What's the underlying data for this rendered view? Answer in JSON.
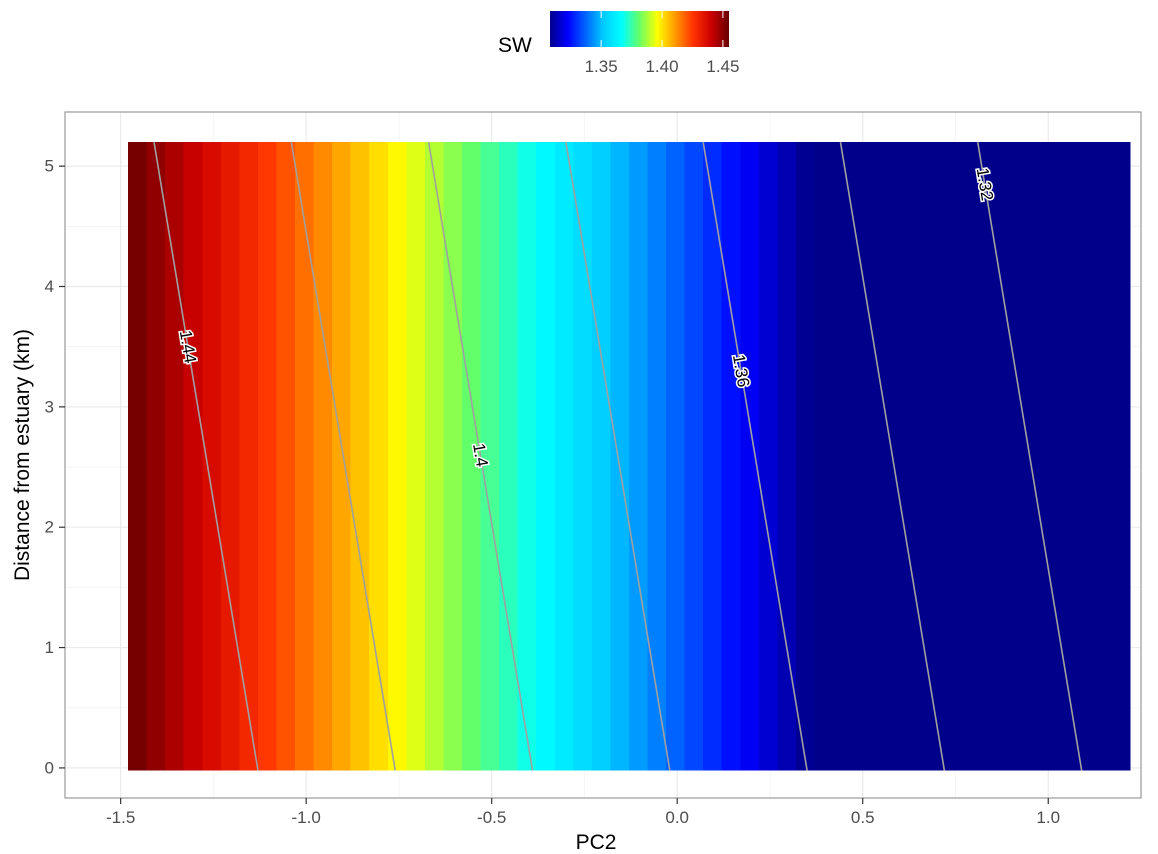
{
  "chart_data": {
    "type": "heatmap",
    "title": "",
    "xlabel": "PC2",
    "ylabel": "Distance from estuary (km)",
    "xlim": [
      -1.65,
      1.25
    ],
    "ylim": [
      -0.25,
      5.45
    ],
    "x_ticks": [
      -1.5,
      -1.0,
      -0.5,
      0.0,
      0.5,
      1.0
    ],
    "x_tick_labels": [
      "-1.5",
      "-1.0",
      "-0.5",
      "0.0",
      "0.5",
      "1.0"
    ],
    "y_ticks": [
      0,
      1,
      2,
      3,
      4,
      5
    ],
    "y_tick_labels": [
      "0",
      "1",
      "2",
      "3",
      "4",
      "5"
    ],
    "grid": true,
    "raster": {
      "x_min": -1.48,
      "x_max": 1.22,
      "y_min": -0.02,
      "y_max": 5.2,
      "column_width": 0.1,
      "values": [
        1.453,
        1.449,
        1.445,
        1.441,
        1.437,
        1.433,
        1.429,
        1.425,
        1.421,
        1.417,
        1.413,
        1.409,
        1.405,
        1.401,
        1.397,
        1.393,
        1.389,
        1.385,
        1.381,
        1.377,
        1.373,
        1.369,
        1.365,
        1.361,
        1.357,
        1.353,
        1.349,
        1.345,
        1.341,
        1.337,
        1.333,
        1.329,
        1.325,
        1.321,
        1.317,
        1.313,
        1.309,
        1.305,
        1.301,
        1.297,
        1.293,
        1.289,
        1.285,
        1.281,
        1.277,
        1.273,
        1.269,
        1.265,
        1.261,
        1.257,
        1.253,
        1.249,
        1.245,
        1.241
      ]
    },
    "contours": [
      {
        "level": "1.44",
        "x_at_y0": -1.13,
        "x_at_ytop": -1.41,
        "label": "1.44",
        "label_y": 3.5
      },
      {
        "level": "1.42",
        "x_at_y0": -0.76,
        "x_at_ytop": -1.04,
        "label": "",
        "label_y": null
      },
      {
        "level": "1.4",
        "x_at_y0": -0.39,
        "x_at_ytop": -0.67,
        "label": "1.4",
        "label_y": 2.6
      },
      {
        "level": "1.38",
        "x_at_y0": -0.02,
        "x_at_ytop": -0.3,
        "label": "",
        "label_y": null
      },
      {
        "level": "1.36",
        "x_at_y0": 0.35,
        "x_at_ytop": 0.07,
        "label": "1.36",
        "label_y": 3.3
      },
      {
        "level": "1.34",
        "x_at_y0": 0.72,
        "x_at_ytop": 0.44,
        "label": "",
        "label_y": null
      },
      {
        "level": "1.32",
        "x_at_y0": 1.09,
        "x_at_ytop": 0.81,
        "label": "1.32",
        "label_y": 4.85
      }
    ],
    "colorbar": {
      "title": "SW",
      "range": [
        1.308,
        1.455
      ],
      "colors": [
        "#00008B",
        "#0000FF",
        "#0066FF",
        "#00CCFF",
        "#00FFFF",
        "#66FF66",
        "#FFFF00",
        "#FF9900",
        "#FF3300",
        "#CC0000",
        "#660000"
      ],
      "ticks": [
        1.35,
        1.4,
        1.45
      ],
      "tick_labels": [
        "1.35",
        "1.40",
        "1.45"
      ]
    },
    "colors": {
      "panel_border": "#999999",
      "grid_major": "#ebebeb",
      "grid_minor": "#f5f5f5",
      "contour_line": "#a0a0a0"
    }
  }
}
